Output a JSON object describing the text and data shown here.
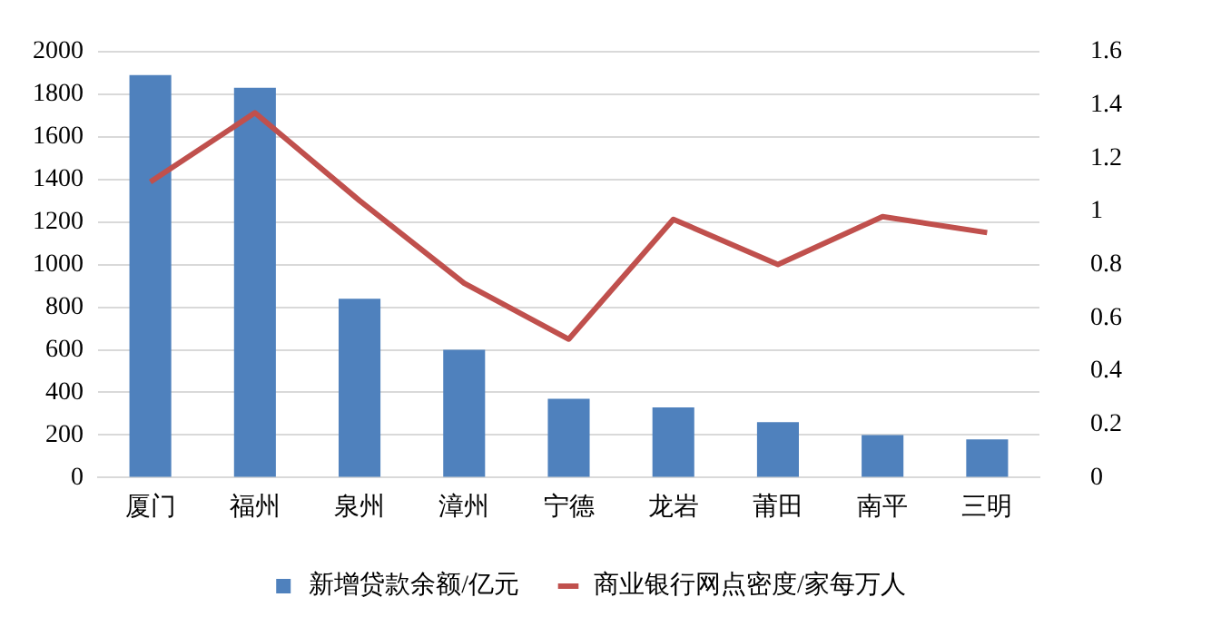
{
  "chart_data": {
    "type": "bar",
    "categories": [
      "厦门",
      "福州",
      "泉州",
      "漳州",
      "宁德",
      "龙岩",
      "莆田",
      "南平",
      "三明"
    ],
    "series": [
      {
        "name": "新增贷款余额/亿元",
        "color": "#4f81bd",
        "values": [
          1890,
          1830,
          840,
          600,
          370,
          330,
          260,
          200,
          180
        ]
      },
      {
        "name": "商业银行网点密度/家每万人",
        "type": "line",
        "axis": "y2",
        "color": "#c0504d",
        "values": [
          1.11,
          1.37,
          1.04,
          0.73,
          0.52,
          0.97,
          0.8,
          0.98,
          0.92
        ]
      }
    ],
    "ylim": [
      0,
      2000
    ],
    "yticks": [
      0,
      200,
      400,
      600,
      800,
      1000,
      1200,
      1400,
      1600,
      1800,
      2000
    ],
    "y2lim": [
      0,
      1.6
    ],
    "y2ticks": [
      0,
      0.2,
      0.4,
      0.6,
      0.8,
      1,
      1.2,
      1.4,
      1.6
    ],
    "grid": "y",
    "legend": "bottom",
    "marker": "none"
  }
}
